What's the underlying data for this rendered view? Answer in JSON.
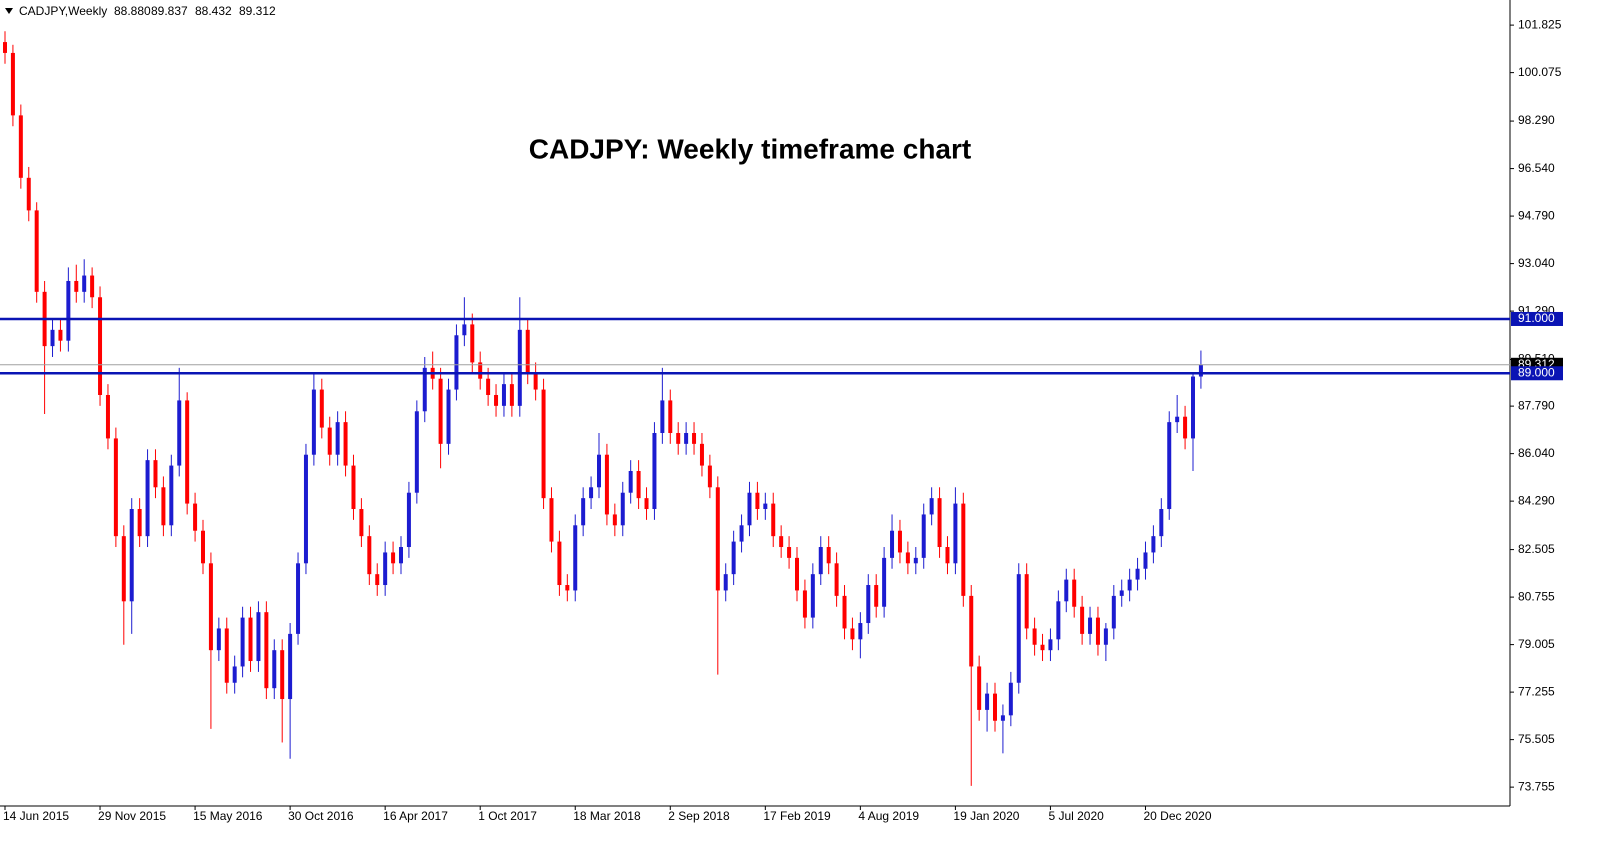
{
  "chart_data": {
    "type": "candlestick",
    "header": {
      "symbol": "CADJPY,Weekly",
      "ohlc_labels": [
        "88.880",
        "89.837",
        "88.432",
        "89.312"
      ]
    },
    "title": "CADJPY: Weekly timeframe chart",
    "categories": [
      "14 Jun 2015",
      null,
      null,
      null,
      null,
      null,
      null,
      null,
      null,
      null,
      null,
      null,
      "29 Nov 2015",
      null,
      null,
      null,
      null,
      null,
      null,
      null,
      null,
      null,
      null,
      null,
      "15 May 2016",
      null,
      null,
      null,
      null,
      null,
      null,
      null,
      null,
      null,
      null,
      null,
      "30 Oct 2016",
      null,
      null,
      null,
      null,
      null,
      null,
      null,
      null,
      null,
      null,
      null,
      "16 Apr 2017",
      null,
      null,
      null,
      null,
      null,
      null,
      null,
      null,
      null,
      null,
      null,
      "1 Oct 2017",
      null,
      null,
      null,
      null,
      null,
      null,
      null,
      null,
      null,
      null,
      null,
      "18 Mar 2018",
      null,
      null,
      null,
      null,
      null,
      null,
      null,
      null,
      null,
      null,
      null,
      "2 Sep 2018",
      null,
      null,
      null,
      null,
      null,
      null,
      null,
      null,
      null,
      null,
      null,
      "17 Feb 2019",
      null,
      null,
      null,
      null,
      null,
      null,
      null,
      null,
      null,
      null,
      null,
      "4 Aug 2019",
      null,
      null,
      null,
      null,
      null,
      null,
      null,
      null,
      null,
      null,
      null,
      "19 Jan 2020",
      null,
      null,
      null,
      null,
      null,
      null,
      null,
      null,
      null,
      null,
      null,
      "5 Jul 2020",
      null,
      null,
      null,
      null,
      null,
      null,
      null,
      null,
      null,
      null,
      null,
      "20 Dec 2020",
      null,
      null,
      null,
      null,
      null,
      null,
      null
    ],
    "open": [
      101.2,
      100.8,
      98.5,
      96.2,
      95.0,
      92.0,
      90.0,
      90.6,
      90.2,
      92.4,
      92.0,
      92.6,
      91.8,
      88.2,
      86.6,
      83.0,
      80.6,
      84.0,
      83.0,
      85.8,
      84.8,
      83.4,
      85.6,
      88.0,
      84.2,
      83.2,
      82.0,
      78.8,
      79.6,
      77.6,
      78.2,
      80.0,
      78.4,
      80.2,
      77.4,
      78.8,
      77.0,
      79.4,
      82.0,
      86.0,
      88.4,
      87.0,
      86.0,
      87.2,
      85.6,
      84.0,
      83.0,
      81.6,
      81.2,
      82.4,
      82.0,
      82.6,
      84.6,
      87.6,
      89.2,
      88.8,
      86.4,
      88.4,
      90.4,
      90.8,
      89.4,
      88.8,
      88.2,
      87.8,
      88.6,
      87.8,
      90.6,
      89.0,
      88.4,
      84.4,
      82.8,
      81.2,
      81.0,
      83.4,
      84.4,
      84.8,
      86.0,
      83.8,
      83.4,
      84.6,
      85.4,
      84.4,
      84.0,
      86.8,
      88.0,
      86.8,
      86.4,
      86.8,
      86.4,
      85.6,
      84.8,
      81.0,
      81.6,
      82.8,
      83.4,
      84.6,
      84.0,
      84.2,
      83.0,
      82.6,
      82.2,
      81.0,
      80.0,
      81.6,
      82.6,
      82.0,
      80.8,
      79.6,
      79.2,
      79.8,
      81.2,
      80.4,
      82.2,
      83.2,
      82.4,
      82.0,
      82.2,
      83.8,
      84.4,
      82.6,
      82.0,
      84.2,
      80.8,
      78.2,
      76.6,
      77.2,
      76.2,
      76.4,
      77.6,
      81.6,
      79.6,
      79.0,
      78.8,
      79.2,
      80.6,
      81.4,
      80.4,
      79.4,
      80.0,
      79.0,
      79.6,
      80.8,
      81.0,
      81.4,
      81.8,
      82.4,
      83.0,
      84.0,
      87.2,
      87.4,
      86.6,
      88.88
    ],
    "high": [
      101.6,
      101.1,
      98.9,
      96.6,
      95.3,
      92.4,
      91.0,
      91.0,
      92.9,
      93.0,
      93.2,
      92.9,
      92.2,
      88.6,
      87.0,
      83.4,
      84.4,
      84.4,
      86.2,
      86.2,
      85.2,
      86.0,
      89.2,
      88.3,
      84.6,
      83.6,
      82.4,
      80.0,
      80.0,
      78.6,
      80.4,
      80.4,
      80.6,
      80.6,
      79.2,
      79.2,
      79.8,
      82.4,
      86.4,
      89.0,
      88.8,
      87.4,
      87.6,
      87.6,
      86.0,
      84.4,
      83.4,
      82.0,
      82.8,
      82.8,
      83.0,
      85.0,
      88.0,
      89.6,
      89.8,
      89.2,
      88.8,
      90.8,
      91.8,
      91.2,
      89.8,
      89.2,
      88.6,
      89.0,
      89.0,
      91.8,
      91.0,
      89.4,
      88.8,
      84.8,
      83.2,
      81.6,
      83.8,
      84.8,
      85.2,
      86.8,
      86.4,
      84.2,
      85.0,
      85.8,
      85.8,
      84.8,
      87.2,
      89.2,
      88.4,
      87.2,
      87.2,
      87.2,
      86.8,
      86.0,
      85.2,
      82.0,
      83.2,
      83.8,
      85.0,
      85.0,
      84.6,
      84.6,
      83.4,
      83.0,
      82.6,
      81.4,
      82.0,
      83.0,
      83.0,
      82.4,
      81.2,
      80.0,
      80.2,
      81.6,
      81.6,
      82.6,
      83.8,
      83.6,
      82.8,
      82.6,
      84.2,
      84.8,
      84.8,
      83.0,
      84.8,
      84.6,
      81.2,
      78.6,
      77.6,
      77.6,
      76.8,
      78.0,
      82.0,
      82.0,
      80.0,
      79.4,
      79.6,
      81.0,
      81.8,
      81.8,
      80.8,
      80.4,
      80.4,
      79.8,
      81.2,
      81.4,
      81.8,
      82.2,
      82.8,
      83.4,
      84.4,
      87.6,
      88.2,
      87.8,
      89.0,
      89.837
    ],
    "low": [
      100.4,
      98.1,
      95.8,
      94.6,
      91.6,
      87.5,
      89.6,
      89.8,
      89.8,
      91.6,
      91.6,
      91.4,
      87.8,
      86.2,
      82.6,
      79.0,
      79.4,
      82.6,
      82.6,
      84.4,
      83.0,
      83.0,
      85.2,
      83.8,
      82.8,
      81.6,
      75.9,
      78.4,
      77.2,
      77.2,
      77.8,
      78.0,
      78.0,
      77.0,
      77.0,
      75.4,
      74.8,
      79.0,
      81.6,
      85.6,
      86.6,
      85.6,
      85.6,
      85.2,
      83.6,
      82.6,
      81.2,
      80.8,
      80.8,
      81.6,
      81.6,
      82.2,
      84.2,
      87.2,
      88.4,
      85.5,
      86.0,
      88.0,
      90.0,
      89.0,
      88.4,
      87.8,
      87.4,
      87.4,
      87.4,
      87.4,
      88.6,
      88.0,
      84.0,
      82.4,
      80.8,
      80.6,
      80.6,
      83.0,
      84.0,
      84.4,
      83.4,
      83.0,
      83.0,
      84.2,
      84.0,
      83.6,
      83.6,
      86.4,
      86.4,
      86.0,
      86.0,
      86.0,
      85.2,
      84.4,
      77.9,
      80.6,
      81.2,
      82.4,
      83.0,
      83.6,
      83.6,
      82.6,
      82.2,
      81.8,
      80.6,
      79.6,
      79.6,
      81.2,
      81.6,
      80.4,
      79.2,
      78.8,
      78.5,
      79.4,
      80.0,
      80.0,
      81.8,
      82.0,
      81.6,
      81.6,
      81.8,
      83.4,
      82.2,
      81.6,
      81.6,
      80.4,
      73.8,
      76.2,
      75.8,
      75.8,
      75.0,
      76.0,
      77.2,
      79.2,
      78.6,
      78.4,
      78.4,
      78.8,
      80.2,
      80.0,
      79.0,
      79.0,
      78.6,
      78.4,
      79.2,
      80.4,
      80.6,
      81.0,
      81.4,
      82.0,
      82.6,
      83.6,
      86.8,
      86.2,
      85.4,
      88.432
    ],
    "close": [
      100.8,
      98.5,
      96.2,
      95.0,
      92.0,
      90.0,
      90.6,
      90.2,
      92.4,
      92.0,
      92.6,
      91.8,
      88.2,
      86.6,
      83.0,
      80.6,
      84.0,
      83.0,
      85.8,
      84.8,
      83.4,
      85.6,
      88.0,
      84.2,
      83.2,
      82.0,
      78.8,
      79.6,
      77.6,
      78.2,
      80.0,
      78.4,
      80.2,
      77.4,
      78.8,
      77.0,
      79.4,
      82.0,
      86.0,
      88.4,
      87.0,
      86.0,
      87.2,
      85.6,
      84.0,
      83.0,
      81.6,
      81.2,
      82.4,
      82.0,
      82.6,
      84.6,
      87.6,
      89.2,
      88.8,
      86.4,
      88.4,
      90.4,
      90.8,
      89.4,
      88.8,
      88.2,
      87.8,
      88.6,
      87.8,
      90.6,
      89.0,
      88.4,
      84.4,
      82.8,
      81.2,
      81.0,
      83.4,
      84.4,
      84.8,
      86.0,
      83.8,
      83.4,
      84.6,
      85.4,
      84.4,
      84.0,
      86.8,
      88.0,
      86.8,
      86.4,
      86.8,
      86.4,
      85.6,
      84.8,
      81.0,
      81.6,
      82.8,
      83.4,
      84.6,
      84.0,
      84.2,
      83.0,
      82.6,
      82.2,
      81.0,
      80.0,
      81.6,
      82.6,
      82.0,
      80.8,
      79.6,
      79.2,
      79.8,
      81.2,
      80.4,
      82.2,
      83.2,
      82.4,
      82.0,
      82.2,
      83.8,
      84.4,
      82.6,
      82.0,
      84.2,
      80.8,
      78.2,
      76.6,
      77.2,
      76.2,
      76.4,
      77.6,
      81.6,
      79.6,
      79.0,
      78.8,
      79.2,
      80.6,
      81.4,
      80.4,
      79.4,
      80.0,
      79.0,
      79.6,
      80.8,
      81.0,
      81.4,
      81.8,
      82.4,
      83.0,
      84.0,
      87.2,
      87.4,
      86.6,
      88.88,
      89.312
    ],
    "up_color": "#1c1cd0",
    "down_color": "#ff0000",
    "ylim": [
      73.06,
      102.75
    ],
    "yticks": [
      101.825,
      100.075,
      {
        "value": 98.29,
        "label": "98.290"
      },
      {
        "value": 96.54,
        "label": "96.540"
      },
      {
        "value": 94.79,
        "label": "94.790"
      },
      {
        "value": 93.04,
        "label": "93.040"
      },
      {
        "value": 91.29,
        "label": "91.290"
      },
      {
        "value": 89.51,
        "label": "89.510"
      },
      {
        "value": 87.79,
        "label": "87.790"
      },
      {
        "value": 86.04,
        "label": "86.040"
      },
      {
        "value": 84.29,
        "label": "84.290"
      },
      82.505,
      80.755,
      79.005,
      77.255,
      75.505,
      73.755
    ],
    "levels": [
      {
        "value": 91,
        "label": "91.000"
      },
      {
        "value": 89,
        "label": "89.000"
      }
    ],
    "level_color": "#0a14b4",
    "last_price": {
      "value": 89.312,
      "label": "89.312"
    }
  }
}
